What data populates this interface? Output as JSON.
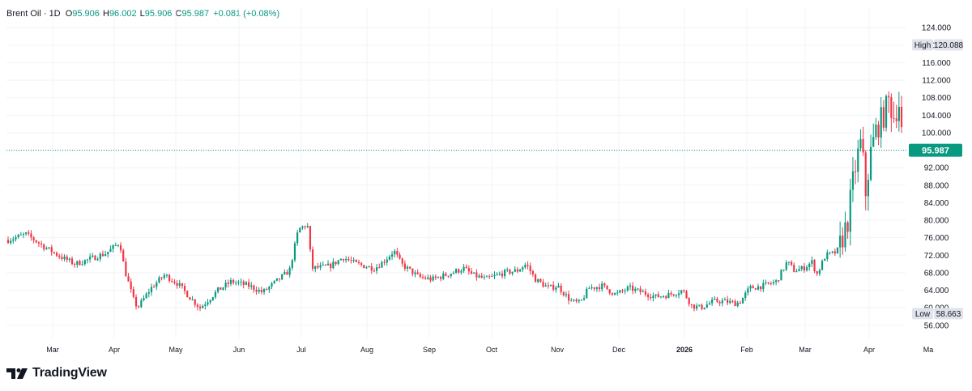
{
  "legend": {
    "symbol": "Brent Oil · 1D",
    "open_label": "O",
    "open": "95.906",
    "high_label": "H",
    "high": "96.002",
    "low_label": "L",
    "low": "95.906",
    "close_label": "C",
    "close": "95.987",
    "change": "+0.081 (+0.08%)"
  },
  "branding": {
    "name": "TradingView"
  },
  "colors": {
    "up": "#089981",
    "down": "#F23645",
    "last_price": "#089981",
    "marker_bg": "#E0E3EB",
    "grid": "#F0F3FA"
  },
  "chart_data": {
    "type": "candlestick",
    "title": "Brent Oil · 1D",
    "ylim": [
      53,
      127
    ],
    "y_ticks": [
      "56.000",
      "60.000",
      "64.000",
      "68.000",
      "72.000",
      "76.000",
      "80.000",
      "84.000",
      "88.000",
      "92.000",
      "96.000",
      "100.000",
      "104.000",
      "108.000",
      "112.000",
      "116.000",
      "120.000",
      "124.000"
    ],
    "x_ticks": [
      {
        "label": "Mar",
        "bold": false
      },
      {
        "label": "Apr",
        "bold": false
      },
      {
        "label": "May",
        "bold": false
      },
      {
        "label": "Jun",
        "bold": false
      },
      {
        "label": "Jul",
        "bold": false
      },
      {
        "label": "Aug",
        "bold": false
      },
      {
        "label": "Sep",
        "bold": false
      },
      {
        "label": "Oct",
        "bold": false
      },
      {
        "label": "Nov",
        "bold": false
      },
      {
        "label": "Dec",
        "bold": false
      },
      {
        "label": "2026",
        "bold": true
      },
      {
        "label": "Feb",
        "bold": false
      },
      {
        "label": "Mar",
        "bold": false
      },
      {
        "label": "Apr",
        "bold": false
      },
      {
        "label": "Ma",
        "bold": false
      }
    ],
    "last_price": 95.987,
    "last_price_label": "95.987",
    "high_marker": {
      "label": "High",
      "value": 120.088,
      "value_label": "120.088"
    },
    "low_marker": {
      "label": "Low",
      "value": 58.663,
      "value_label": "58.663"
    },
    "close_path": [
      [
        0,
        75.5
      ],
      [
        0.02,
        76.8
      ],
      [
        0.04,
        74.0
      ],
      [
        0.06,
        71.5
      ],
      [
        0.075,
        70.0
      ],
      [
        0.09,
        71.0
      ],
      [
        0.11,
        72.5
      ],
      [
        0.125,
        75.0
      ],
      [
        0.13,
        69.0
      ],
      [
        0.14,
        62.0
      ],
      [
        0.145,
        60.0
      ],
      [
        0.16,
        64.5
      ],
      [
        0.175,
        67.5
      ],
      [
        0.19,
        65.5
      ],
      [
        0.205,
        62.0
      ],
      [
        0.215,
        60.0
      ],
      [
        0.235,
        64.0
      ],
      [
        0.25,
        66.0
      ],
      [
        0.27,
        65.0
      ],
      [
        0.285,
        63.5
      ],
      [
        0.3,
        66.0
      ],
      [
        0.315,
        68.5
      ],
      [
        0.325,
        78.0
      ],
      [
        0.335,
        79.0
      ],
      [
        0.34,
        69.0
      ],
      [
        0.36,
        69.5
      ],
      [
        0.375,
        71.5
      ],
      [
        0.39,
        70.0
      ],
      [
        0.41,
        69.0
      ],
      [
        0.42,
        70.5
      ],
      [
        0.432,
        73.0
      ],
      [
        0.44,
        70.0
      ],
      [
        0.46,
        67.0
      ],
      [
        0.475,
        66.5
      ],
      [
        0.49,
        67.5
      ],
      [
        0.51,
        69.0
      ],
      [
        0.52,
        67.5
      ],
      [
        0.535,
        66.5
      ],
      [
        0.555,
        68.0
      ],
      [
        0.57,
        68.5
      ],
      [
        0.58,
        70.0
      ],
      [
        0.59,
        66.5
      ],
      [
        0.605,
        64.5
      ],
      [
        0.615,
        65.0
      ],
      [
        0.63,
        61.5
      ],
      [
        0.64,
        61.0
      ],
      [
        0.65,
        64.5
      ],
      [
        0.665,
        65.0
      ],
      [
        0.68,
        63.0
      ],
      [
        0.695,
        64.5
      ],
      [
        0.71,
        63.5
      ],
      [
        0.725,
        62.5
      ],
      [
        0.74,
        63.0
      ],
      [
        0.755,
        64.0
      ],
      [
        0.765,
        60.5
      ],
      [
        0.775,
        60.0
      ],
      [
        0.79,
        61.5
      ],
      [
        0.8,
        61.5
      ],
      [
        0.815,
        61.0
      ],
      [
        0.82,
        61.5
      ],
      [
        0.83,
        64.5
      ],
      [
        0.845,
        65.0
      ],
      [
        0.86,
        66.0
      ],
      [
        0.872,
        70.5
      ],
      [
        0.88,
        68.5
      ],
      [
        0.89,
        69.0
      ],
      [
        0.9,
        70.5
      ],
      [
        0.905,
        67.5
      ],
      [
        0.915,
        72.0
      ],
      [
        0.925,
        72.5
      ],
      [
        0.93,
        73.5
      ],
      [
        0.94,
        80.0
      ],
      [
        0.945,
        88.0
      ],
      [
        0.95,
        94.0
      ],
      [
        0.955,
        98.0
      ],
      [
        0.96,
        86.0
      ],
      [
        0.965,
        95.0
      ],
      [
        0.972,
        101.0
      ],
      [
        0.98,
        104.0
      ],
      [
        0.987,
        108.0
      ],
      [
        0.99,
        103.0
      ],
      [
        0.997,
        107.0
      ],
      [
        1.0,
        100.0
      ]
    ]
  }
}
